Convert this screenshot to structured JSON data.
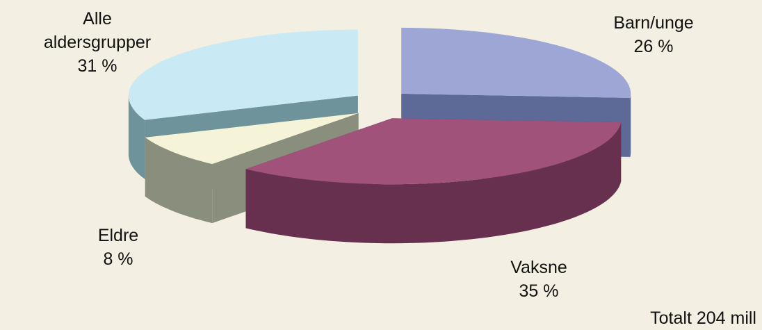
{
  "chart_data": {
    "type": "pie3d",
    "categories": [
      "Barn/unge",
      "Vaksne",
      "Eldre",
      "Alle aldersgrupper"
    ],
    "values": [
      26,
      35,
      8,
      31
    ],
    "value_labels": [
      "26 %",
      "35 %",
      "8 %",
      "31 %"
    ],
    "colors": [
      "#9da6d4",
      "#a0527a",
      "#f6f4d8",
      "#c9e9f4"
    ],
    "side_colors": [
      "#5d6a98",
      "#66304e",
      "#8a8e7d",
      "#6f939b"
    ],
    "annotation": "Totalt 204 mill"
  }
}
